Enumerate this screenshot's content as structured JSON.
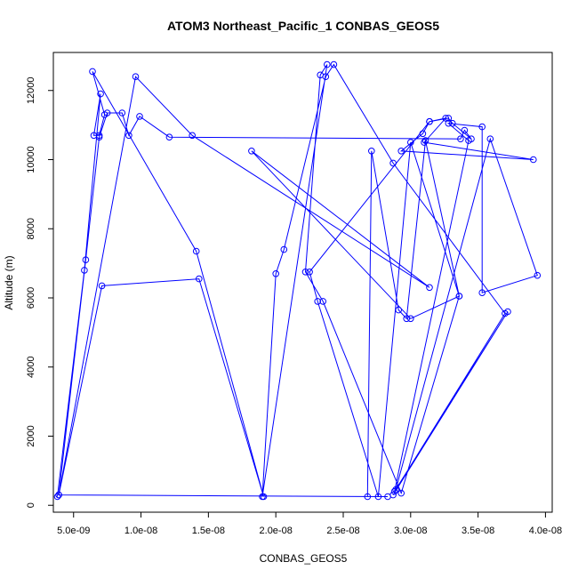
{
  "chart_data": {
    "type": "line",
    "title": "ATOM3 Northeast_Pacific_1 CONBAS_GEOS5",
    "xlabel": "CONBAS_GEOS5",
    "ylabel": "Altitude (m)",
    "xlim": [
      3.5e-09,
      4.05e-08
    ],
    "ylim": [
      -200,
      13100
    ],
    "x_ticks": [
      5e-09,
      1e-08,
      1.5e-08,
      2e-08,
      2.5e-08,
      3e-08,
      3.5e-08,
      4e-08
    ],
    "x_tick_labels": [
      "5.0e-09",
      "1.0e-08",
      "1.5e-08",
      "2.0e-08",
      "2.5e-08",
      "3.0e-08",
      "3.5e-08",
      "4.0e-08"
    ],
    "y_ticks": [
      0,
      2000,
      4000,
      6000,
      8000,
      10000,
      12000
    ],
    "y_tick_labels": [
      "0",
      "2000",
      "4000",
      "6000",
      "8000",
      "10000",
      "12000"
    ],
    "grid": false,
    "series_color": "#0000ff",
    "series": [
      {
        "x": [
          3.8e-09,
          5.8e-09,
          7e-09,
          6.5e-09,
          6.9e-09,
          7.3e-09,
          6.4e-09,
          1.41e-08,
          1.91e-08,
          1.43e-08,
          7.1e-09,
          3.9e-09,
          5.9e-09,
          6.9e-09,
          7.5e-09,
          8.6e-09,
          9.1e-09,
          9.9e-09,
          1.21e-08,
          3.37e-08,
          3.4e-08,
          3.45e-08,
          3.31e-08,
          3.28e-08,
          3.14e-08,
          3.09e-08,
          2.93e-08,
          3.91e-08,
          3.1e-08,
          3.26e-08,
          3.14e-08,
          2.25e-08,
          2.31e-08,
          2.76e-08,
          3e-08,
          3.36e-08,
          3e-08,
          1.82e-08,
          3.14e-08,
          1.38e-08,
          9.6e-09,
          3.9e-09,
          2.83e-08,
          2.68e-08,
          2.71e-08,
          2.91e-08,
          2.97e-08,
          3.11e-08,
          3.36e-08,
          2.93e-08,
          2.35e-08,
          2.22e-08,
          2.33e-08,
          2.38e-08,
          1.9e-08,
          2e-08,
          2.06e-08,
          2.37e-08,
          2.43e-08,
          2.87e-08,
          3.7e-08,
          2.89e-08,
          3.59e-08,
          3.94e-08,
          3.53e-08,
          3.53e-08,
          3.28e-08,
          3.43e-08,
          2.88e-08,
          3.72e-08,
          2.87e-08
        ],
        "y": [
          250,
          6800,
          11900,
          10700,
          10700,
          11300,
          12550,
          7350,
          250,
          6550,
          6350,
          300,
          7100,
          10650,
          11350,
          11350,
          10700,
          11250,
          10650,
          10600,
          10850,
          10600,
          11050,
          11200,
          11100,
          10750,
          10250,
          10000,
          10500,
          11200,
          11100,
          6750,
          5900,
          250,
          10500,
          6050,
          5400,
          10250,
          6300,
          10700,
          12400,
          300,
          250,
          250,
          10250,
          5650,
          5400,
          10550,
          6050,
          350,
          5900,
          6750,
          12450,
          12750,
          250,
          6700,
          7400,
          12400,
          12750,
          9900,
          5550,
          450,
          10600,
          6650,
          6150,
          10950,
          11050,
          10550,
          400,
          5600,
          300
        ]
      }
    ]
  }
}
